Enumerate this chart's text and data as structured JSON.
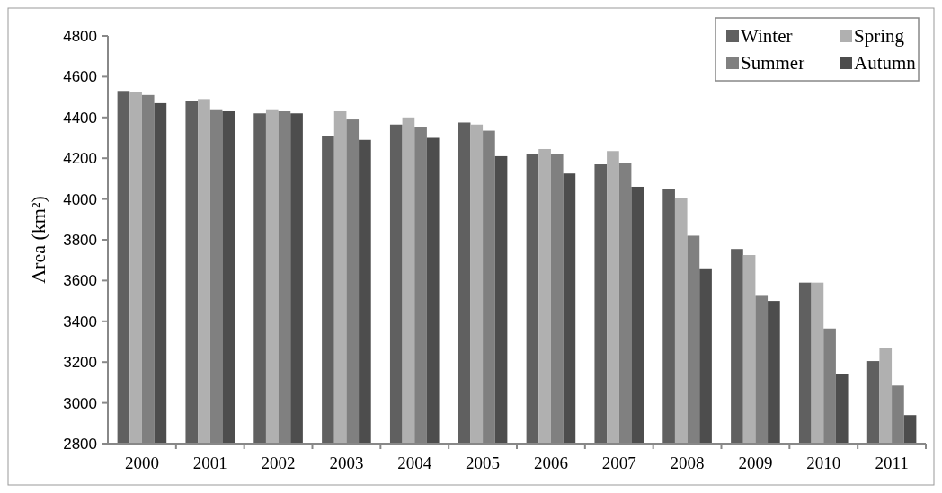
{
  "chart_data": {
    "type": "bar",
    "ylabel": "Area (km²)",
    "categories": [
      "2000",
      "2001",
      "2002",
      "2003",
      "2004",
      "2005",
      "2006",
      "2007",
      "2008",
      "2009",
      "2010",
      "2011"
    ],
    "series": [
      {
        "name": "Winter",
        "color": "#606060",
        "values": [
          4530,
          4480,
          4420,
          4310,
          4365,
          4375,
          4220,
          4170,
          4050,
          3755,
          3590,
          3205
        ]
      },
      {
        "name": "Spring",
        "color": "#b0b0b0",
        "values": [
          4525,
          4490,
          4440,
          4430,
          4400,
          4365,
          4245,
          4235,
          4005,
          3725,
          3590,
          3270
        ]
      },
      {
        "name": "Summer",
        "color": "#808080",
        "values": [
          4510,
          4440,
          4430,
          4390,
          4355,
          4335,
          4220,
          4175,
          3820,
          3525,
          3365,
          3085
        ]
      },
      {
        "name": "Autumn",
        "color": "#4d4d4d",
        "values": [
          4470,
          4430,
          4420,
          4290,
          4300,
          4210,
          4125,
          4060,
          3660,
          3500,
          3140,
          2940
        ]
      }
    ],
    "ylim": [
      2800,
      4800
    ],
    "yticks": [
      2800,
      3000,
      3200,
      3400,
      3600,
      3800,
      4000,
      4200,
      4400,
      4600,
      4800
    ],
    "grid": false,
    "legend": "top right"
  }
}
